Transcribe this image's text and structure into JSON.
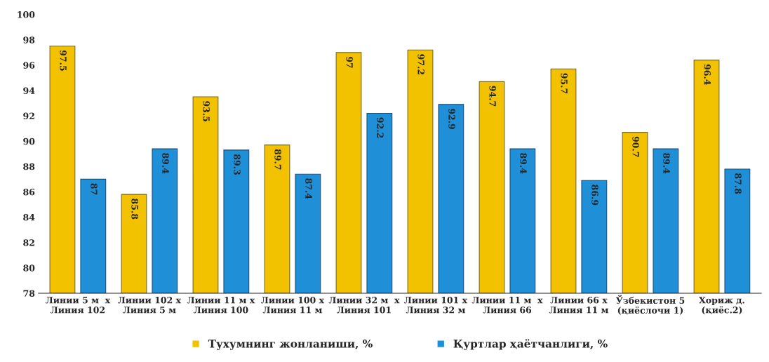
{
  "chart_data": {
    "type": "bar",
    "categories": [
      "Линии 5 м  х\nЛиния 102",
      "Линии 102 х\nЛиния 5 м",
      "Линии 11 м х\nЛиния 100",
      "Линии 100 х\nЛиния 11 м",
      "Линии 32 м  х\nЛиния 101",
      "Линии 101 х\nЛиния 32 м",
      "Линии 11 м  х\nЛиния 66",
      "Линии 66 х\nЛиния 11 м",
      "Ўзбекистон 5\n(қиёслочи 1)",
      "Хориж д.\n(қиёс.2)"
    ],
    "series": [
      {
        "name": "Тухумнинг жонланиши, %",
        "color": "#f2c200",
        "values": [
          97.5,
          85.8,
          93.5,
          89.7,
          97,
          97.2,
          94.7,
          95.7,
          90.7,
          96.4
        ]
      },
      {
        "name": "Қуртлар ҳаётчанлиги, %",
        "color": "#1f8fd8",
        "values": [
          87,
          89.4,
          89.3,
          87.4,
          92.2,
          92.9,
          89.4,
          86.9,
          89.4,
          87.8
        ]
      }
    ],
    "ylim": [
      78,
      100
    ],
    "yticks": [
      78,
      80,
      82,
      84,
      86,
      88,
      90,
      92,
      94,
      96,
      98,
      100
    ],
    "data_labels": true,
    "grid": false,
    "legend": "bottom"
  }
}
